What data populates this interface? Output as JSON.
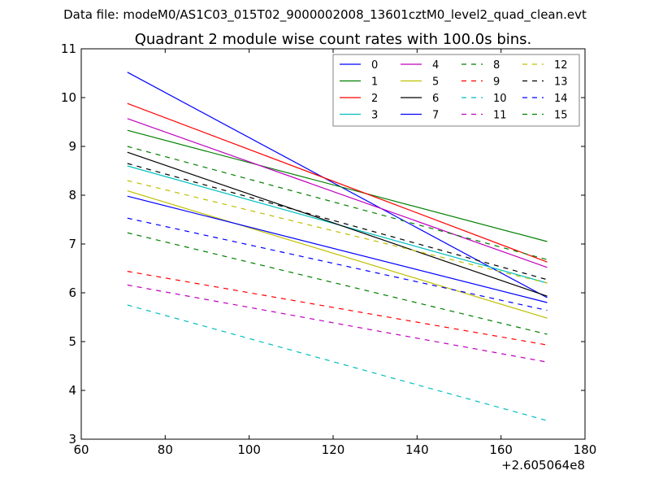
{
  "figure": {
    "suptitle": "Data file: modeM0/AS1C03_015T02_9000002008_13601cztM0_level2_quad_clean.evt"
  },
  "chart_data": {
    "type": "line",
    "title": "Quadrant 2 module wise count rates with 100.0s bins.",
    "xlabel": "",
    "ylabel": "",
    "x_offset_label": "+2.605064e8",
    "xlim": [
      60,
      180
    ],
    "ylim": [
      3,
      11
    ],
    "x_ticks": [
      60,
      80,
      100,
      120,
      140,
      160,
      180
    ],
    "y_ticks": [
      3,
      4,
      5,
      6,
      7,
      8,
      9,
      10,
      11
    ],
    "grid": false,
    "legend": {
      "placement": "top-right",
      "columns": 4
    },
    "x": [
      71,
      171
    ],
    "series": [
      {
        "name": "0",
        "values": [
          10.52,
          5.9
        ],
        "color": "#0000ff",
        "dash": "solid"
      },
      {
        "name": "1",
        "values": [
          9.33,
          7.05
        ],
        "color": "#008000",
        "dash": "solid"
      },
      {
        "name": "2",
        "values": [
          9.88,
          6.63
        ],
        "color": "#ff0000",
        "dash": "solid"
      },
      {
        "name": "3",
        "values": [
          8.6,
          6.2
        ],
        "color": "#00bfbf",
        "dash": "solid"
      },
      {
        "name": "4",
        "values": [
          9.57,
          6.52
        ],
        "color": "#bf00bf",
        "dash": "solid"
      },
      {
        "name": "5",
        "values": [
          8.09,
          5.48
        ],
        "color": "#bfbf00",
        "dash": "solid"
      },
      {
        "name": "6",
        "values": [
          8.88,
          5.93
        ],
        "color": "#000000",
        "dash": "solid"
      },
      {
        "name": "7",
        "values": [
          7.98,
          5.8
        ],
        "color": "#0000ff",
        "dash": "solid"
      },
      {
        "name": "8",
        "values": [
          9.0,
          6.68
        ],
        "color": "#008000",
        "dash": "dashed"
      },
      {
        "name": "9",
        "values": [
          6.44,
          4.93
        ],
        "color": "#ff0000",
        "dash": "dashed"
      },
      {
        "name": "10",
        "values": [
          5.75,
          3.38
        ],
        "color": "#00bfbf",
        "dash": "dashed"
      },
      {
        "name": "11",
        "values": [
          6.16,
          4.58
        ],
        "color": "#bf00bf",
        "dash": "dashed"
      },
      {
        "name": "12",
        "values": [
          8.3,
          6.2
        ],
        "color": "#bfbf00",
        "dash": "dashed"
      },
      {
        "name": "13",
        "values": [
          8.65,
          6.27
        ],
        "color": "#000000",
        "dash": "dashed"
      },
      {
        "name": "14",
        "values": [
          7.53,
          5.64
        ],
        "color": "#0000ff",
        "dash": "dashed"
      },
      {
        "name": "15",
        "values": [
          7.23,
          5.15
        ],
        "color": "#008000",
        "dash": "dashed"
      }
    ]
  }
}
